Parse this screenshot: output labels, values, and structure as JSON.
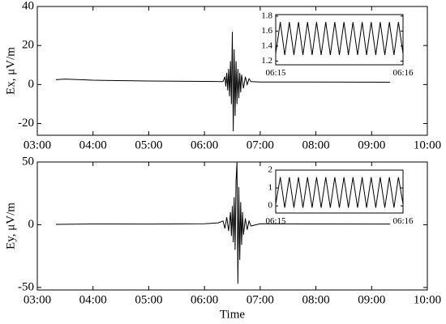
{
  "chart_data": [
    {
      "type": "line",
      "ylabel": "Ex, μV/m",
      "color": "#000000",
      "xlim": [
        180,
        600
      ],
      "xticks": [
        {
          "value": 180,
          "label": "03:00"
        },
        {
          "value": 240,
          "label": "04:00"
        },
        {
          "value": 300,
          "label": "05:00"
        },
        {
          "value": 360,
          "label": "06:00"
        },
        {
          "value": 420,
          "label": "07:00"
        },
        {
          "value": 480,
          "label": "08:00"
        },
        {
          "value": 540,
          "label": "09:00"
        },
        {
          "value": 600,
          "label": "10:00"
        }
      ],
      "ylim": [
        -26,
        40
      ],
      "yticks": [
        -20,
        0,
        20,
        40
      ],
      "x": [
        200,
        210,
        240,
        300,
        360,
        380,
        382,
        383,
        384,
        385,
        386,
        387,
        388,
        389,
        390,
        391,
        392,
        393,
        394,
        395,
        396,
        397,
        398,
        399,
        400,
        402,
        404,
        406,
        408,
        410,
        420,
        480,
        560
      ],
      "values": [
        2.5,
        2.8,
        2.2,
        1.8,
        1.6,
        1.5,
        4,
        -1,
        6,
        -3,
        8,
        -6,
        12,
        -10,
        27,
        -24,
        18,
        -16,
        12,
        -10,
        8,
        -7,
        6,
        -4,
        5,
        -2,
        4,
        0,
        3,
        1.5,
        1.3,
        1.3,
        1.2
      ],
      "inset": {
        "xlim": [
          375,
          376
        ],
        "xticks": [
          {
            "value": 375,
            "label": "06:15"
          },
          {
            "value": 376,
            "label": "06:16"
          }
        ],
        "ylim": [
          1.15,
          1.82
        ],
        "yticks": [
          1.2,
          1.4,
          1.6,
          1.8
        ],
        "x": [
          375,
          375.036,
          375.071,
          375.107,
          375.143,
          375.179,
          375.214,
          375.25,
          375.286,
          375.321,
          375.357,
          375.393,
          375.429,
          375.464,
          375.5,
          375.536,
          375.571,
          375.607,
          375.643,
          375.679,
          375.714,
          375.75,
          375.786,
          375.821,
          375.857,
          375.893,
          375.929,
          375.964,
          376
        ],
        "values": [
          1.3,
          1.72,
          1.28,
          1.72,
          1.28,
          1.72,
          1.28,
          1.72,
          1.28,
          1.72,
          1.28,
          1.72,
          1.28,
          1.72,
          1.28,
          1.72,
          1.28,
          1.72,
          1.28,
          1.72,
          1.28,
          1.72,
          1.28,
          1.72,
          1.28,
          1.72,
          1.28,
          1.72,
          1.3
        ]
      }
    },
    {
      "type": "line",
      "ylabel": "Ey, μV/m",
      "xlabel": "Time",
      "color": "#000000",
      "xlim": [
        180,
        600
      ],
      "xticks": [
        {
          "value": 180,
          "label": "03:00"
        },
        {
          "value": 240,
          "label": "04:00"
        },
        {
          "value": 300,
          "label": "05:00"
        },
        {
          "value": 360,
          "label": "06:00"
        },
        {
          "value": 420,
          "label": "07:00"
        },
        {
          "value": 480,
          "label": "08:00"
        },
        {
          "value": 540,
          "label": "09:00"
        },
        {
          "value": 600,
          "label": "10:00"
        }
      ],
      "ylim": [
        -52,
        50
      ],
      "yticks": [
        -50,
        0,
        50
      ],
      "x": [
        200,
        240,
        300,
        360,
        375,
        380,
        382,
        384,
        386,
        388,
        389,
        390,
        391,
        392,
        393,
        394,
        395,
        396,
        397,
        398,
        399,
        400,
        401,
        402,
        404,
        406,
        408,
        410,
        420,
        480,
        560
      ],
      "values": [
        0.3,
        0.6,
        0.5,
        0.8,
        1.5,
        3,
        -3,
        6,
        -5,
        10,
        -9,
        15,
        -14,
        22,
        -20,
        35,
        50,
        -47,
        30,
        -28,
        18,
        -16,
        10,
        -8,
        5,
        -4,
        3,
        -1,
        0.8,
        0.6,
        0.5
      ],
      "inset": {
        "xlim": [
          375,
          376
        ],
        "xticks": [
          {
            "value": 375,
            "label": "06:15"
          },
          {
            "value": 376,
            "label": "06:16"
          }
        ],
        "ylim": [
          -0.4,
          2
        ],
        "yticks": [
          0,
          1,
          2
        ],
        "x": [
          375,
          375.036,
          375.071,
          375.107,
          375.143,
          375.179,
          375.214,
          375.25,
          375.286,
          375.321,
          375.357,
          375.393,
          375.429,
          375.464,
          375.5,
          375.536,
          375.571,
          375.607,
          375.643,
          375.679,
          375.714,
          375.75,
          375.786,
          375.821,
          375.857,
          375.893,
          375.929,
          375.964,
          376
        ],
        "values": [
          0.1,
          1.6,
          -0.1,
          1.6,
          -0.1,
          1.6,
          -0.1,
          1.6,
          -0.1,
          1.6,
          -0.1,
          1.6,
          -0.1,
          1.6,
          -0.1,
          1.6,
          -0.1,
          1.6,
          -0.1,
          1.6,
          -0.1,
          1.6,
          -0.1,
          1.6,
          -0.1,
          1.6,
          -0.1,
          1.6,
          0.1
        ]
      }
    }
  ]
}
